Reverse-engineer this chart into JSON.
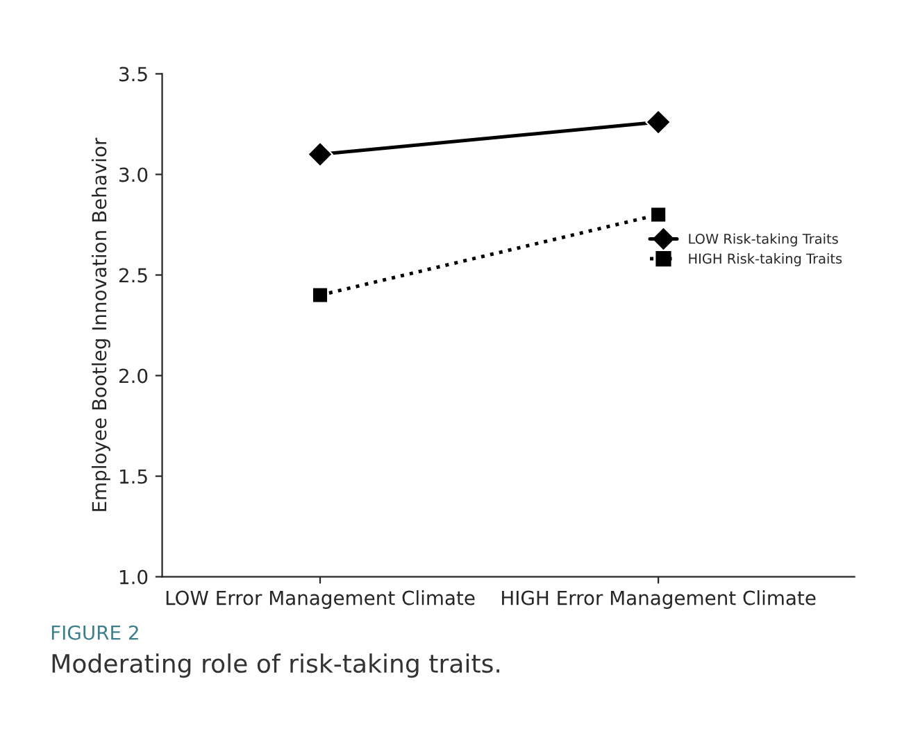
{
  "chart_data": {
    "type": "line",
    "ylabel": "Employee Bootleg Innovation Behavior",
    "categories": [
      "LOW Error Management Climate",
      "HIGH Error Management Climate"
    ],
    "series": [
      {
        "name": "LOW Risk-taking Traits",
        "color": "#000000",
        "values": [
          3.1,
          3.26
        ],
        "marker": "diamond",
        "line_style": "solid"
      },
      {
        "name": "HIGH Risk-taking Traits",
        "color": "#000000",
        "values": [
          2.4,
          2.8
        ],
        "marker": "square",
        "line_style": "dotted"
      }
    ],
    "ylim": [
      1.0,
      3.5
    ],
    "yticks": [
      {
        "value": 1.0,
        "label": "1.0"
      },
      {
        "value": 1.5,
        "label": "1.5"
      },
      {
        "value": 2.0,
        "label": "2.0"
      },
      {
        "value": 2.5,
        "label": "2.5"
      },
      {
        "value": 3.0,
        "label": "3.0"
      },
      {
        "value": 3.5,
        "label": "3.5"
      }
    ],
    "grid": false,
    "legend": "right",
    "annotations": [
      "FIGURE 2",
      "Moderating role of risk-taking traits."
    ]
  }
}
